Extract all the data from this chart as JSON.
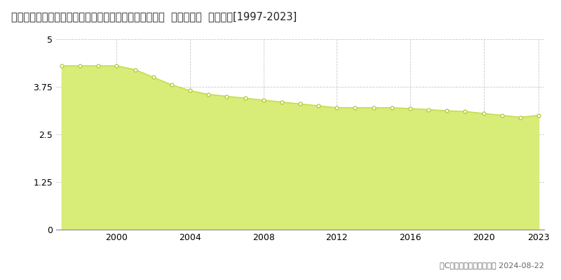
{
  "title": "福島県南会津郡下郷町大字湯野上字居平乙７２９番イ外  基準地価格  地価推移[1997-2023]",
  "years": [
    1997,
    1998,
    1999,
    2000,
    2001,
    2002,
    2003,
    2004,
    2005,
    2006,
    2007,
    2008,
    2009,
    2010,
    2011,
    2012,
    2013,
    2014,
    2015,
    2016,
    2017,
    2018,
    2019,
    2020,
    2021,
    2022,
    2023
  ],
  "values": [
    4.3,
    4.3,
    4.3,
    4.3,
    4.2,
    4.0,
    3.8,
    3.65,
    3.55,
    3.5,
    3.45,
    3.4,
    3.35,
    3.3,
    3.25,
    3.2,
    3.2,
    3.2,
    3.2,
    3.18,
    3.15,
    3.12,
    3.1,
    3.05,
    3.0,
    2.95,
    3.0
  ],
  "ylim": [
    0,
    5
  ],
  "yticks": [
    0,
    1.25,
    2.5,
    3.75,
    5
  ],
  "ytick_labels": [
    "0",
    "1.25",
    "2.5",
    "3.75",
    "5"
  ],
  "xticks": [
    2000,
    2004,
    2008,
    2012,
    2016,
    2020,
    2023
  ],
  "line_color": "#c8dc50",
  "fill_color": "#d8ec78",
  "marker_color": "#ffffff",
  "marker_edge_color": "#b8cc40",
  "grid_color": "#bbbbbb",
  "bg_color": "#ffffff",
  "legend_color": "#c8dc50",
  "copyright_text": "（C）土地価格ドットコム 2024-08-22",
  "title_fontsize": 10.5,
  "axis_fontsize": 9,
  "legend_fontsize": 9,
  "copyright_fontsize": 8
}
